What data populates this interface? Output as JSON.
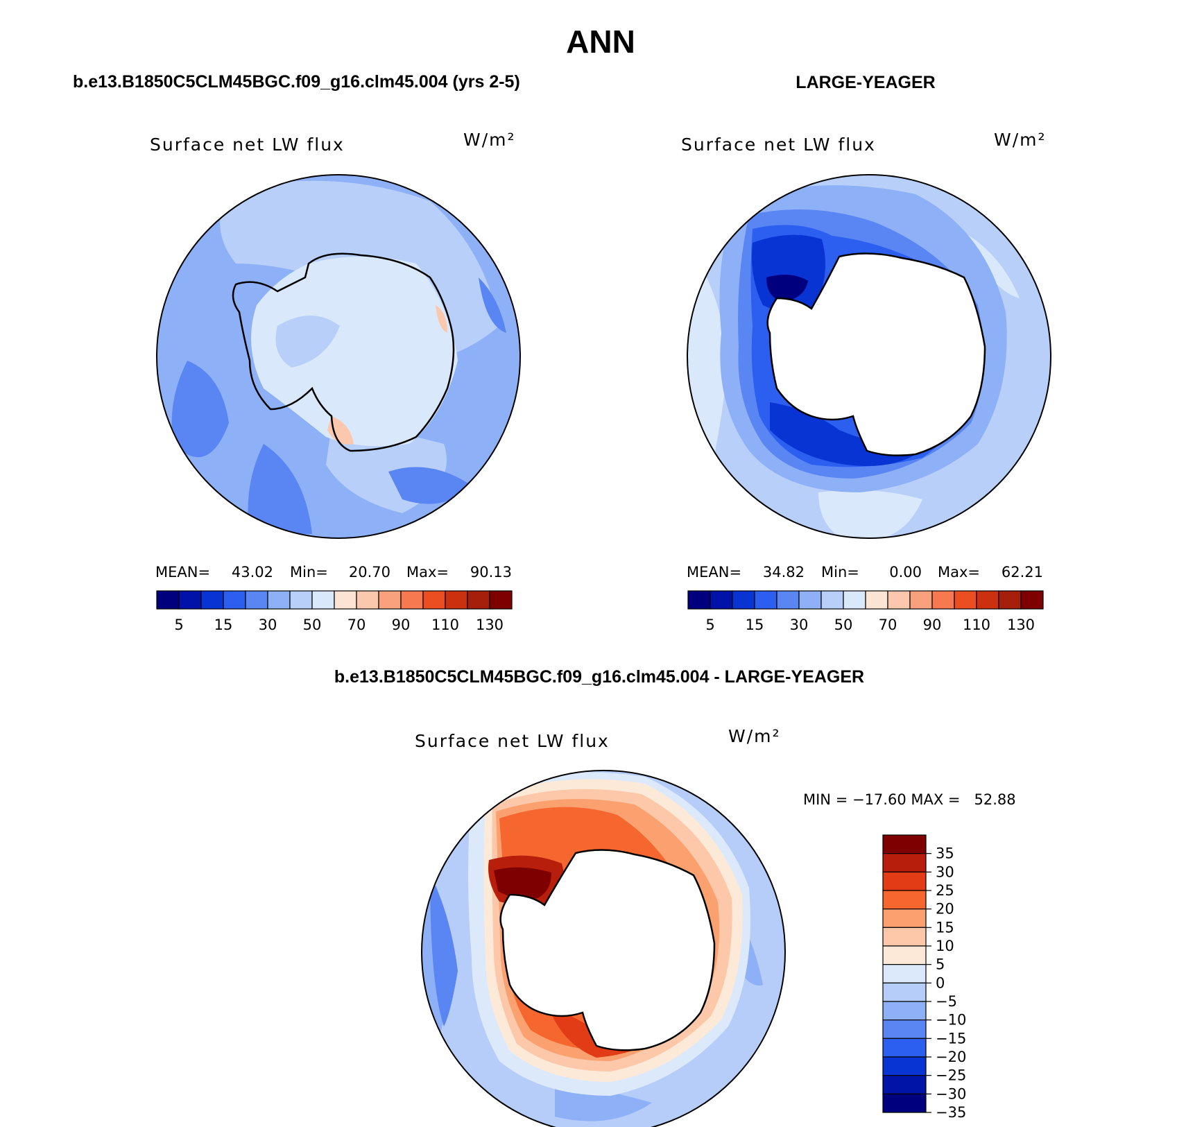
{
  "page_title": "ANN",
  "panels": [
    {
      "heading": "b.e13.B1850C5CLM45BGC.f09_g16.clm45.004 (yrs 2-5)",
      "variable": "Surface net LW flux",
      "units": "W/m²",
      "stats": {
        "mean_label": "MEAN=",
        "mean": "43.02",
        "min_label": "Min=",
        "min": "20.70",
        "max_label": "Max=",
        "max": "90.13"
      }
    },
    {
      "heading": "LARGE-YEAGER",
      "variable": "Surface net LW flux",
      "units": "W/m²",
      "stats": {
        "mean_label": "MEAN=",
        "mean": "34.82",
        "min_label": "Min=",
        "min": "0.00",
        "max_label": "Max=",
        "max": "62.21"
      }
    },
    {
      "heading": "b.e13.B1850C5CLM45BGC.f09_g16.clm45.004 - LARGE-YEAGER",
      "variable": "Surface net LW flux",
      "units": "W/m²",
      "stats": {
        "text": "MIN = −17.60 MAX =   52.88"
      }
    }
  ],
  "chart_data": [
    {
      "type": "heatmap",
      "projection": "south-polar-stereographic",
      "title": "Surface net LW flux",
      "units": "W/m²",
      "summary": {
        "mean": 43.02,
        "min": 20.7,
        "max": 90.13
      },
      "colorbar": {
        "orientation": "horizontal",
        "colors": [
          "#00007f",
          "#0012a8",
          "#0834d3",
          "#2c5ff0",
          "#5a86f4",
          "#8db0f7",
          "#b7cff9",
          "#dae8fb",
          "#fbe4d4",
          "#fbc8ae",
          "#f9a07d",
          "#f6794f",
          "#ea4e21",
          "#cb310f",
          "#a51f0b",
          "#7f0000"
        ],
        "tick_labels": [
          "5",
          "15",
          "30",
          "50",
          "70",
          "90",
          "110",
          "130"
        ]
      }
    },
    {
      "type": "heatmap",
      "projection": "south-polar-stereographic",
      "title": "Surface net LW flux",
      "units": "W/m²",
      "summary": {
        "mean": 34.82,
        "min": 0.0,
        "max": 62.21
      },
      "colorbar": {
        "orientation": "horizontal",
        "colors": [
          "#00007f",
          "#0012a8",
          "#0834d3",
          "#2c5ff0",
          "#5a86f4",
          "#8db0f7",
          "#b7cff9",
          "#dae8fb",
          "#fbe4d4",
          "#fbc8ae",
          "#f9a07d",
          "#f6794f",
          "#ea4e21",
          "#cb310f",
          "#a51f0b",
          "#7f0000"
        ],
        "tick_labels": [
          "5",
          "15",
          "30",
          "50",
          "70",
          "90",
          "110",
          "130"
        ]
      }
    },
    {
      "type": "heatmap",
      "projection": "south-polar-stereographic",
      "title": "Surface net LW flux",
      "units": "W/m²",
      "summary": {
        "min": -17.6,
        "max": 52.88
      },
      "colorbar": {
        "orientation": "vertical",
        "colors_top_to_bottom": [
          "#7f0000",
          "#b81e0c",
          "#e23c16",
          "#f6672f",
          "#fba16f",
          "#fcc8a9",
          "#fde9d8",
          "#dbe9fb",
          "#b6cdf9",
          "#8db0f7",
          "#5a86f4",
          "#2c5ff0",
          "#0834d3",
          "#0015a6",
          "#00007f"
        ],
        "tick_labels": [
          "35",
          "30",
          "25",
          "20",
          "15",
          "10",
          "5",
          "0",
          "−5",
          "−10",
          "−15",
          "−20",
          "−25",
          "−30",
          "−35"
        ]
      }
    }
  ]
}
